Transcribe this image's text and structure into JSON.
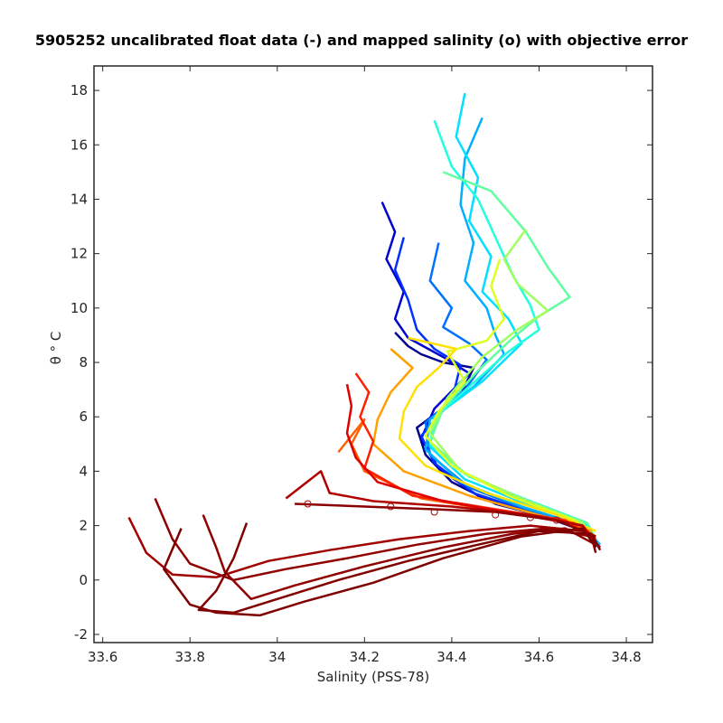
{
  "chart_data": {
    "type": "line",
    "title": "5905252 uncalibrated float data (-) and mapped salinity (o) with objective error",
    "xlabel": "Salinity (PSS-78)",
    "ylabel": "θ ° C",
    "xlim": [
      33.58,
      34.86
    ],
    "ylim": [
      -2.3,
      18.9
    ],
    "xticks": [
      33.6,
      33.8,
      34,
      34.2,
      34.4,
      34.6,
      34.8
    ],
    "xtick_labels": [
      "33.6",
      "33.8",
      "34",
      "34.2",
      "34.4",
      "34.6",
      "34.8"
    ],
    "yticks": [
      -2,
      0,
      2,
      4,
      6,
      8,
      10,
      12,
      14,
      16,
      18
    ],
    "ytick_labels": [
      "-2",
      "0",
      "2",
      "4",
      "6",
      "8",
      "10",
      "12",
      "14",
      "16",
      "18"
    ],
    "grid": false,
    "colormap": "jet (profile number, blue = early, red = late)",
    "series": [
      {
        "color": "#00008f",
        "points": [
          [
            34.27,
            9.1
          ],
          [
            34.3,
            8.6
          ],
          [
            34.33,
            8.3
          ],
          [
            34.38,
            8.0
          ],
          [
            34.45,
            7.8
          ],
          [
            34.42,
            6.8
          ],
          [
            34.32,
            5.6
          ],
          [
            34.34,
            4.6
          ],
          [
            34.4,
            3.6
          ],
          [
            34.5,
            2.8
          ],
          [
            34.62,
            2.3
          ],
          [
            34.7,
            1.9
          ],
          [
            34.73,
            1.4
          ]
        ]
      },
      {
        "color": "#0000d0",
        "points": [
          [
            34.24,
            13.9
          ],
          [
            34.27,
            12.8
          ],
          [
            34.25,
            11.8
          ],
          [
            34.29,
            10.6
          ],
          [
            34.27,
            9.6
          ],
          [
            34.3,
            8.9
          ],
          [
            34.38,
            8.2
          ],
          [
            34.44,
            7.6
          ],
          [
            34.36,
            6.3
          ],
          [
            34.33,
            5.2
          ],
          [
            34.37,
            4.1
          ],
          [
            34.46,
            3.1
          ],
          [
            34.6,
            2.4
          ],
          [
            34.72,
            1.7
          ],
          [
            34.73,
            1.2
          ]
        ]
      },
      {
        "color": "#0030ff",
        "points": [
          [
            34.29,
            12.6
          ],
          [
            34.27,
            11.4
          ],
          [
            34.3,
            10.3
          ],
          [
            34.32,
            9.2
          ],
          [
            34.36,
            8.5
          ],
          [
            34.42,
            7.9
          ],
          [
            34.4,
            6.6
          ],
          [
            34.33,
            5.3
          ],
          [
            34.36,
            4.3
          ],
          [
            34.45,
            3.2
          ],
          [
            34.58,
            2.5
          ],
          [
            34.7,
            1.9
          ],
          [
            34.73,
            1.3
          ]
        ]
      },
      {
        "color": "#0070ff",
        "points": [
          [
            34.37,
            12.4
          ],
          [
            34.35,
            11.0
          ],
          [
            34.4,
            10.0
          ],
          [
            34.38,
            9.3
          ],
          [
            34.44,
            8.7
          ],
          [
            34.48,
            8.1
          ],
          [
            34.43,
            7.0
          ],
          [
            34.34,
            5.8
          ],
          [
            34.35,
            4.6
          ],
          [
            34.44,
            3.4
          ],
          [
            34.57,
            2.6
          ],
          [
            34.7,
            1.9
          ],
          [
            34.74,
            1.2
          ]
        ]
      },
      {
        "color": "#00b0ff",
        "points": [
          [
            34.47,
            17.0
          ],
          [
            34.43,
            15.5
          ],
          [
            34.42,
            13.8
          ],
          [
            34.45,
            12.4
          ],
          [
            34.43,
            11.0
          ],
          [
            34.48,
            10.0
          ],
          [
            34.5,
            9.0
          ],
          [
            34.52,
            8.3
          ],
          [
            34.45,
            7.1
          ],
          [
            34.35,
            5.9
          ],
          [
            34.34,
            4.8
          ],
          [
            34.42,
            3.6
          ],
          [
            34.56,
            2.7
          ],
          [
            34.7,
            2.0
          ],
          [
            34.74,
            1.3
          ]
        ]
      },
      {
        "color": "#00e0ff",
        "points": [
          [
            34.43,
            17.9
          ],
          [
            34.41,
            16.3
          ],
          [
            34.46,
            14.8
          ],
          [
            34.44,
            13.2
          ],
          [
            34.49,
            11.9
          ],
          [
            34.47,
            10.6
          ],
          [
            34.53,
            9.6
          ],
          [
            34.56,
            8.7
          ],
          [
            34.47,
            7.3
          ],
          [
            34.36,
            6.0
          ],
          [
            34.35,
            4.9
          ],
          [
            34.43,
            3.7
          ],
          [
            34.57,
            2.8
          ],
          [
            34.71,
            2.0
          ],
          [
            34.73,
            1.4
          ]
        ]
      },
      {
        "color": "#20ffdf",
        "points": [
          [
            34.36,
            16.9
          ],
          [
            34.4,
            15.2
          ],
          [
            34.46,
            14.0
          ],
          [
            34.5,
            12.6
          ],
          [
            34.54,
            11.2
          ],
          [
            34.58,
            10.1
          ],
          [
            34.6,
            9.2
          ],
          [
            34.53,
            8.4
          ],
          [
            34.46,
            7.4
          ],
          [
            34.37,
            6.1
          ],
          [
            34.35,
            5.0
          ],
          [
            34.44,
            3.8
          ],
          [
            34.58,
            2.9
          ],
          [
            34.71,
            2.1
          ],
          [
            34.73,
            1.5
          ]
        ]
      },
      {
        "color": "#60ff9f",
        "points": [
          [
            34.38,
            15.0
          ],
          [
            34.49,
            14.3
          ],
          [
            34.57,
            12.8
          ],
          [
            34.62,
            11.5
          ],
          [
            34.67,
            10.4
          ],
          [
            34.6,
            9.7
          ],
          [
            34.54,
            8.9
          ],
          [
            34.46,
            7.7
          ],
          [
            34.38,
            6.3
          ],
          [
            34.35,
            5.1
          ],
          [
            34.43,
            3.9
          ],
          [
            34.57,
            2.9
          ],
          [
            34.71,
            2.1
          ],
          [
            34.73,
            1.3
          ]
        ]
      },
      {
        "color": "#a0ff5f",
        "points": [
          [
            34.57,
            12.9
          ],
          [
            34.52,
            11.8
          ],
          [
            34.55,
            10.9
          ],
          [
            34.62,
            9.9
          ],
          [
            34.55,
            9.2
          ],
          [
            34.47,
            8.2
          ],
          [
            34.39,
            6.7
          ],
          [
            34.35,
            5.4
          ],
          [
            34.42,
            4.0
          ],
          [
            34.56,
            3.0
          ],
          [
            34.7,
            2.1
          ],
          [
            34.73,
            1.4
          ]
        ]
      },
      {
        "color": "#dfff20",
        "points": [
          [
            34.51,
            11.8
          ],
          [
            34.49,
            10.8
          ],
          [
            34.52,
            9.6
          ],
          [
            34.48,
            8.8
          ],
          [
            34.39,
            8.4
          ],
          [
            34.43,
            7.3
          ],
          [
            34.37,
            6.2
          ],
          [
            34.34,
            5.3
          ],
          [
            34.4,
            4.2
          ],
          [
            34.53,
            3.1
          ],
          [
            34.68,
            2.2
          ],
          [
            34.73,
            1.6
          ]
        ]
      },
      {
        "color": "#ffe000",
        "points": [
          [
            34.3,
            8.9
          ],
          [
            34.41,
            8.5
          ],
          [
            34.37,
            7.8
          ],
          [
            34.32,
            7.1
          ],
          [
            34.29,
            6.2
          ],
          [
            34.28,
            5.2
          ],
          [
            34.34,
            4.2
          ],
          [
            34.48,
            3.2
          ],
          [
            34.64,
            2.4
          ],
          [
            34.73,
            1.8
          ]
        ]
      },
      {
        "color": "#ffa000",
        "points": [
          [
            34.26,
            8.5
          ],
          [
            34.31,
            7.8
          ],
          [
            34.26,
            6.9
          ],
          [
            34.23,
            5.9
          ],
          [
            34.22,
            5.0
          ],
          [
            34.29,
            4.0
          ],
          [
            34.44,
            3.1
          ],
          [
            34.62,
            2.3
          ],
          [
            34.72,
            1.8
          ]
        ]
      },
      {
        "color": "#ff6000",
        "points": [
          [
            34.14,
            4.7
          ],
          [
            34.2,
            5.9
          ],
          [
            34.17,
            5.0
          ],
          [
            34.2,
            4.0
          ],
          [
            34.33,
            3.0
          ],
          [
            34.52,
            2.5
          ],
          [
            34.68,
            2.1
          ],
          [
            34.73,
            1.6
          ]
        ]
      },
      {
        "color": "#ff2000",
        "points": [
          [
            34.18,
            7.6
          ],
          [
            34.21,
            6.9
          ],
          [
            34.19,
            6.0
          ],
          [
            34.22,
            5.1
          ],
          [
            34.2,
            4.1
          ],
          [
            34.31,
            3.1
          ],
          [
            34.5,
            2.6
          ],
          [
            34.66,
            2.2
          ],
          [
            34.73,
            1.5
          ]
        ]
      },
      {
        "color": "#df0000",
        "points": [
          [
            34.16,
            7.2
          ],
          [
            34.17,
            6.4
          ],
          [
            34.16,
            5.4
          ],
          [
            34.18,
            4.5
          ],
          [
            34.23,
            3.6
          ],
          [
            34.38,
            2.9
          ],
          [
            34.56,
            2.4
          ],
          [
            34.7,
            2.0
          ],
          [
            34.73,
            1.4
          ]
        ]
      },
      {
        "color": "#b00000",
        "points": [
          [
            34.02,
            3.0
          ],
          [
            34.1,
            4.0
          ],
          [
            34.12,
            3.2
          ],
          [
            34.22,
            2.9
          ],
          [
            34.4,
            2.7
          ],
          [
            34.58,
            2.4
          ],
          [
            34.7,
            2.0
          ],
          [
            34.73,
            1.3
          ]
        ]
      },
      {
        "color": "#a00000",
        "points": [
          [
            33.66,
            2.3
          ],
          [
            33.7,
            1.0
          ],
          [
            33.76,
            0.2
          ],
          [
            33.86,
            0.1
          ],
          [
            33.98,
            0.7
          ],
          [
            34.12,
            1.1
          ],
          [
            34.28,
            1.5
          ],
          [
            34.44,
            1.8
          ],
          [
            34.58,
            2.0
          ],
          [
            34.7,
            1.8
          ],
          [
            34.74,
            1.2
          ]
        ]
      },
      {
        "color": "#900000",
        "points": [
          [
            33.72,
            3.0
          ],
          [
            33.76,
            1.5
          ],
          [
            33.8,
            0.6
          ],
          [
            33.9,
            0.0
          ],
          [
            34.02,
            0.4
          ],
          [
            34.16,
            0.8
          ],
          [
            34.32,
            1.3
          ],
          [
            34.48,
            1.7
          ],
          [
            34.62,
            1.9
          ],
          [
            34.72,
            1.6
          ],
          [
            34.73,
            1.0
          ]
        ]
      },
      {
        "color": "#8f0000",
        "points": [
          [
            33.83,
            2.4
          ],
          [
            33.86,
            1.2
          ],
          [
            33.88,
            0.3
          ],
          [
            33.94,
            -0.7
          ],
          [
            34.04,
            -0.2
          ],
          [
            34.2,
            0.5
          ],
          [
            34.38,
            1.2
          ],
          [
            34.54,
            1.7
          ],
          [
            34.66,
            1.9
          ],
          [
            34.73,
            1.3
          ]
        ]
      },
      {
        "color": "#800000",
        "points": [
          [
            33.93,
            2.1
          ],
          [
            33.9,
            0.8
          ],
          [
            33.86,
            -0.4
          ],
          [
            33.82,
            -1.1
          ],
          [
            33.9,
            -1.2
          ],
          [
            34.0,
            -0.7
          ],
          [
            34.14,
            0.0
          ],
          [
            34.3,
            0.7
          ],
          [
            34.46,
            1.3
          ],
          [
            34.6,
            1.8
          ],
          [
            34.72,
            1.7
          ],
          [
            34.74,
            1.1
          ]
        ]
      },
      {
        "color": "#7f0000",
        "points": [
          [
            33.78,
            1.9
          ],
          [
            33.74,
            0.4
          ],
          [
            33.8,
            -0.9
          ],
          [
            33.86,
            -1.2
          ],
          [
            33.96,
            -1.3
          ],
          [
            34.06,
            -0.8
          ],
          [
            34.22,
            -0.1
          ],
          [
            34.38,
            0.8
          ],
          [
            34.56,
            1.6
          ],
          [
            34.7,
            1.9
          ],
          [
            34.73,
            1.2
          ]
        ]
      },
      {
        "color": "#8a0000",
        "points": [
          [
            34.04,
            2.8
          ],
          [
            34.2,
            2.7
          ],
          [
            34.36,
            2.6
          ],
          [
            34.5,
            2.5
          ],
          [
            34.64,
            2.2
          ],
          [
            34.73,
            1.6
          ]
        ]
      }
    ],
    "mapped_salinity_markers": [
      [
        34.07,
        2.8
      ],
      [
        34.26,
        2.7
      ],
      [
        34.36,
        2.5
      ],
      [
        34.5,
        2.4
      ],
      [
        34.58,
        2.3
      ],
      [
        34.64,
        2.2
      ]
    ]
  }
}
